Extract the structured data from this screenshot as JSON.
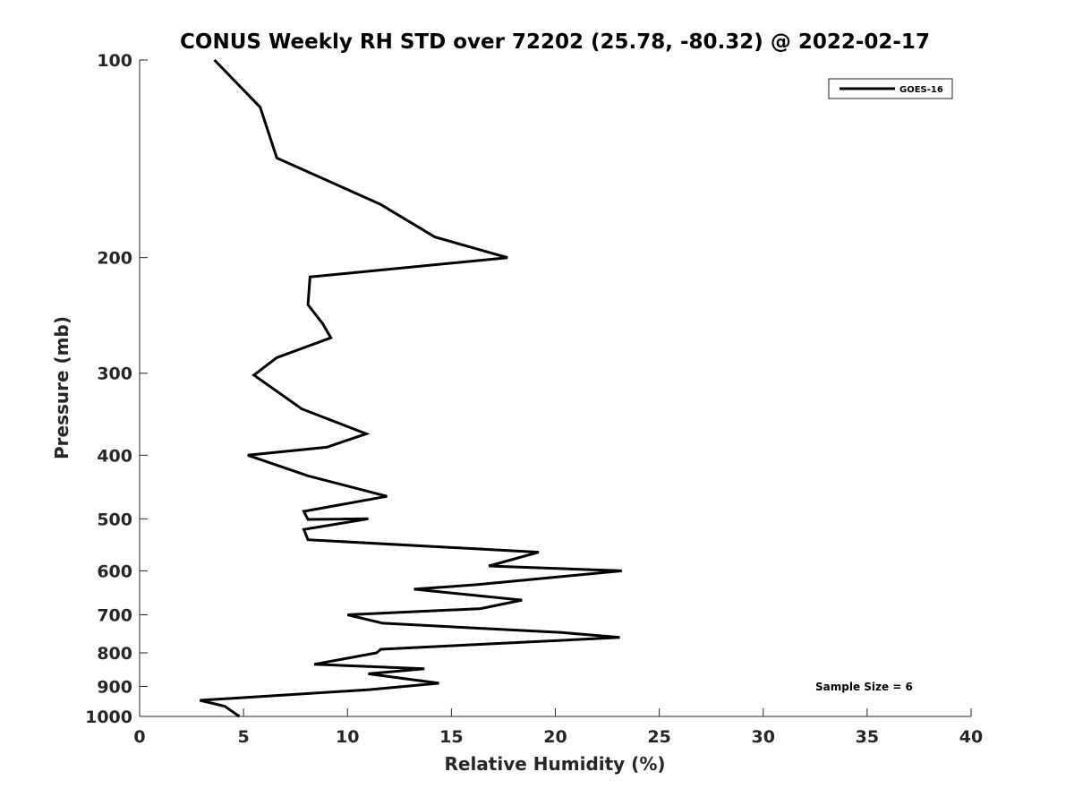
{
  "chart_data": {
    "type": "line",
    "title": "CONUS Weekly RH STD over 72202 (25.78, -80.32) @ 2022-02-17",
    "xlabel": "Relative Humidity (%)",
    "ylabel": "Pressure (mb)",
    "xlim": [
      0,
      40
    ],
    "ylim": [
      100,
      1000
    ],
    "y_scale": "log",
    "y_reversed": true,
    "grid": false,
    "legend_placement": "top-right",
    "x_ticks": [
      0,
      5,
      10,
      15,
      20,
      25,
      30,
      35,
      40
    ],
    "x_tick_labels": [
      "0",
      "5",
      "10",
      "15",
      "20",
      "25",
      "30",
      "35",
      "40"
    ],
    "y_ticks": [
      100,
      200,
      300,
      400,
      500,
      600,
      700,
      800,
      900,
      1000
    ],
    "y_tick_labels": [
      "100",
      "200",
      "300",
      "400",
      "500",
      "600",
      "700",
      "800",
      "900",
      "1000"
    ],
    "series": [
      {
        "name": "GOES-16",
        "color": "#000000",
        "x": [
          3.6,
          5.8,
          6.6,
          11.6,
          14.2,
          17.7,
          8.2,
          8.1,
          8.8,
          9.2,
          6.6,
          5.5,
          7.8,
          10.9,
          9.0,
          5.2,
          8.1,
          11.9,
          7.9,
          8.1,
          11.0,
          7.9,
          8.1,
          19.2,
          16.8,
          23.2,
          16.2,
          13.2,
          18.4,
          16.4,
          10.0,
          11.7,
          20.3,
          23.1,
          11.6,
          11.4,
          8.4,
          13.7,
          11.0,
          14.4,
          11.1,
          2.9,
          4.1,
          4.8
        ],
        "y": [
          100,
          118,
          141,
          166,
          186,
          200,
          214,
          236,
          252,
          265,
          284,
          302,
          340,
          371,
          389,
          400,
          430,
          462,
          487,
          501,
          500,
          519,
          538,
          562,
          590,
          600,
          630,
          640,
          665,
          685,
          700,
          721,
          745,
          758,
          790,
          800,
          833,
          846,
          861,
          890,
          910,
          945,
          965,
          1000
        ]
      }
    ],
    "legend": {
      "entries": [
        "GOES-16"
      ]
    },
    "annotation": "Sample Size = 6"
  }
}
